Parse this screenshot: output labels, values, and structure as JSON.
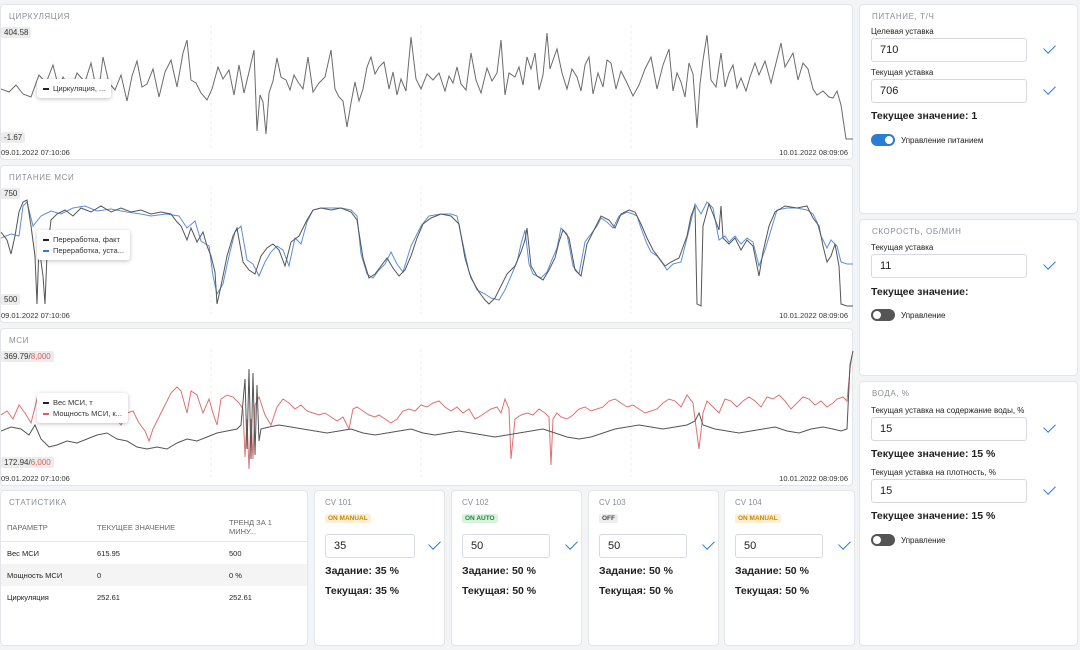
{
  "charts": {
    "circ": {
      "title": "ЦИРКУЛЯЦИЯ",
      "ymax": "404.58",
      "ymin": "-1.67",
      "t_start": "09.01.2022 07:10:06",
      "t_end": "10.01.2022 08:09:06",
      "legend": [
        "Циркуляция, ..."
      ]
    },
    "feed": {
      "title": "ПИТАНИЕ МСИ",
      "ymax": "750",
      "ymin": "500",
      "t_start": "09.01.2022 07:10:06",
      "t_end": "10.01.2022 08:09:06",
      "legend": [
        "Переработка, факт",
        "Переработка, уста..."
      ]
    },
    "msi": {
      "title": "МСИ",
      "ymax_a": "369.79",
      "ymax_b": "8,000",
      "ymin_a": "172.94",
      "ymin_b": "6,000",
      "t_start": "09.01.2022 07:10:06",
      "t_end": "10.01.2022 08:09:06",
      "legend": [
        "Вес МСИ, т",
        "Мощность МСИ, к..."
      ]
    }
  },
  "colors": {
    "gray_series": "#6b6b6b",
    "blue_series": "#5b8fd6",
    "red_series": "#e07070",
    "accent": "#2b7cd3"
  },
  "stats": {
    "title": "СТАТИСТИКА",
    "headers": [
      "ПАРАМЕТР",
      "ТЕКУЩЕЕ ЗНАЧЕНИЕ",
      "ТРЕНД ЗА 1 МИНУ..."
    ],
    "rows": [
      [
        "Вес МСИ",
        "615.95",
        "500"
      ],
      [
        "Мощность МСИ",
        "0",
        "0 %"
      ],
      [
        "Циркуляция",
        "252.61",
        "252.61"
      ]
    ]
  },
  "cv": [
    {
      "title": "CV 101",
      "mode": "ON MANUAL",
      "input": "35",
      "task": "Задание: 35 %",
      "current": "Текущая: 35 %"
    },
    {
      "title": "CV 102",
      "mode": "ON AUTO",
      "input": "50",
      "task": "Задание: 50 %",
      "current": "Текущая: 50 %"
    },
    {
      "title": "CV 103",
      "mode": "OFF",
      "input": "50",
      "task": "Задание: 50 %",
      "current": "Текущая: 50 %"
    },
    {
      "title": "CV 104",
      "mode": "ON MANUAL",
      "input": "50",
      "task": "Задание: 50 %",
      "current": "Текущая: 50 %"
    }
  ],
  "feed_panel": {
    "title": "ПИТАНИЕ, Т/Ч",
    "target_label": "Целевая уставка",
    "target_value": "710",
    "current_label": "Текущая уставка",
    "current_value": "706",
    "value_text": "Текущее значение: 1",
    "toggle_label": "Управление питанием",
    "toggle_on": true
  },
  "speed_panel": {
    "title": "СКОРОСТЬ, ОБ/МИН",
    "current_label": "Текущая уставка",
    "current_value": "11",
    "value_text": "Текущее значение:",
    "toggle_label": "Управление",
    "toggle_on": false
  },
  "water_panel": {
    "title": "ВОДА, %",
    "water_label": "Текущая уставка на содержание воды, %",
    "water_value": "15",
    "water_text": "Текущее значение: 15 %",
    "density_label": "Текущая уставка на плотность, %",
    "density_value": "15",
    "density_text": "Текущее значение: 15 %",
    "toggle_label": "Управление",
    "toggle_on": false
  }
}
